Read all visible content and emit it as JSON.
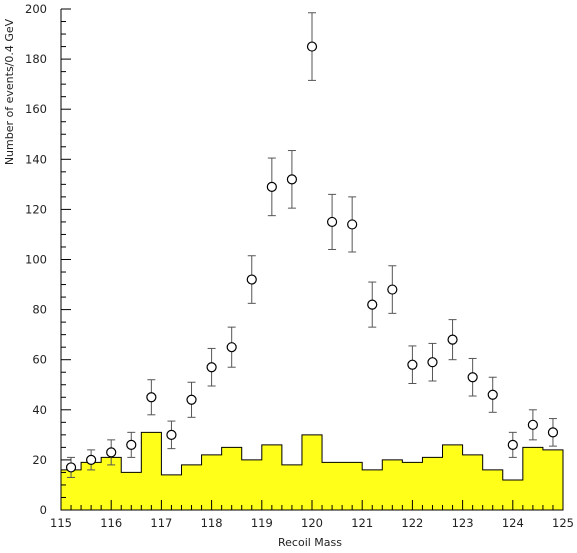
{
  "chart_data": {
    "type": "scatter",
    "title": "",
    "xlabel": "Recoil Mass",
    "ylabel": "Number of events/0.4 GeV",
    "xlim": [
      115,
      125
    ],
    "ylim": [
      0,
      200
    ],
    "x_ticks": [
      "115",
      "116",
      "117",
      "118",
      "119",
      "120",
      "121",
      "122",
      "123",
      "124",
      "125"
    ],
    "y_ticks": [
      "0",
      "20",
      "40",
      "60",
      "80",
      "100",
      "120",
      "140",
      "160",
      "180",
      "200"
    ],
    "grid": false,
    "colors": {
      "background_fill": "#ffff1a",
      "points": "#000000",
      "error_bars": "#555555"
    },
    "series": [
      {
        "type": "points_with_errors",
        "points": [
          {
            "x": 115.2,
            "y": 17,
            "err": 4
          },
          {
            "x": 115.6,
            "y": 20,
            "err": 4
          },
          {
            "x": 116.0,
            "y": 23,
            "err": 5
          },
          {
            "x": 116.4,
            "y": 26,
            "err": 5
          },
          {
            "x": 116.8,
            "y": 45,
            "err": 7
          },
          {
            "x": 117.2,
            "y": 30,
            "err": 5.5
          },
          {
            "x": 117.6,
            "y": 44,
            "err": 7
          },
          {
            "x": 118.0,
            "y": 57,
            "err": 7.5
          },
          {
            "x": 118.4,
            "y": 65,
            "err": 8
          },
          {
            "x": 118.8,
            "y": 92,
            "err": 9.5
          },
          {
            "x": 119.2,
            "y": 129,
            "err": 11.5
          },
          {
            "x": 119.6,
            "y": 132,
            "err": 11.5
          },
          {
            "x": 120.0,
            "y": 185,
            "err": 13.5
          },
          {
            "x": 120.4,
            "y": 115,
            "err": 11
          },
          {
            "x": 120.8,
            "y": 114,
            "err": 11
          },
          {
            "x": 121.2,
            "y": 82,
            "err": 9
          },
          {
            "x": 121.6,
            "y": 88,
            "err": 9.5
          },
          {
            "x": 122.0,
            "y": 58,
            "err": 7.5
          },
          {
            "x": 122.4,
            "y": 59,
            "err": 7.5
          },
          {
            "x": 122.8,
            "y": 68,
            "err": 8
          },
          {
            "x": 123.2,
            "y": 53,
            "err": 7.5
          },
          {
            "x": 123.6,
            "y": 46,
            "err": 7
          },
          {
            "x": 124.0,
            "y": 26,
            "err": 5
          },
          {
            "x": 124.4,
            "y": 34,
            "err": 6
          },
          {
            "x": 124.8,
            "y": 31,
            "err": 5.5
          }
        ]
      },
      {
        "type": "histogram",
        "bin_edges": [
          115.0,
          115.4,
          115.8,
          116.2,
          116.6,
          117.0,
          117.4,
          117.8,
          118.2,
          118.6,
          119.0,
          119.4,
          119.8,
          120.2,
          120.6,
          121.0,
          121.4,
          121.8,
          122.2,
          122.6,
          123.0,
          123.4,
          123.8,
          124.2,
          124.6,
          125.0
        ],
        "values": [
          16,
          19,
          21,
          15,
          31,
          14,
          18,
          22,
          25,
          20,
          26,
          18,
          30,
          19,
          19,
          16,
          20,
          19,
          21,
          26,
          22,
          16,
          12,
          25,
          24
        ]
      }
    ]
  }
}
